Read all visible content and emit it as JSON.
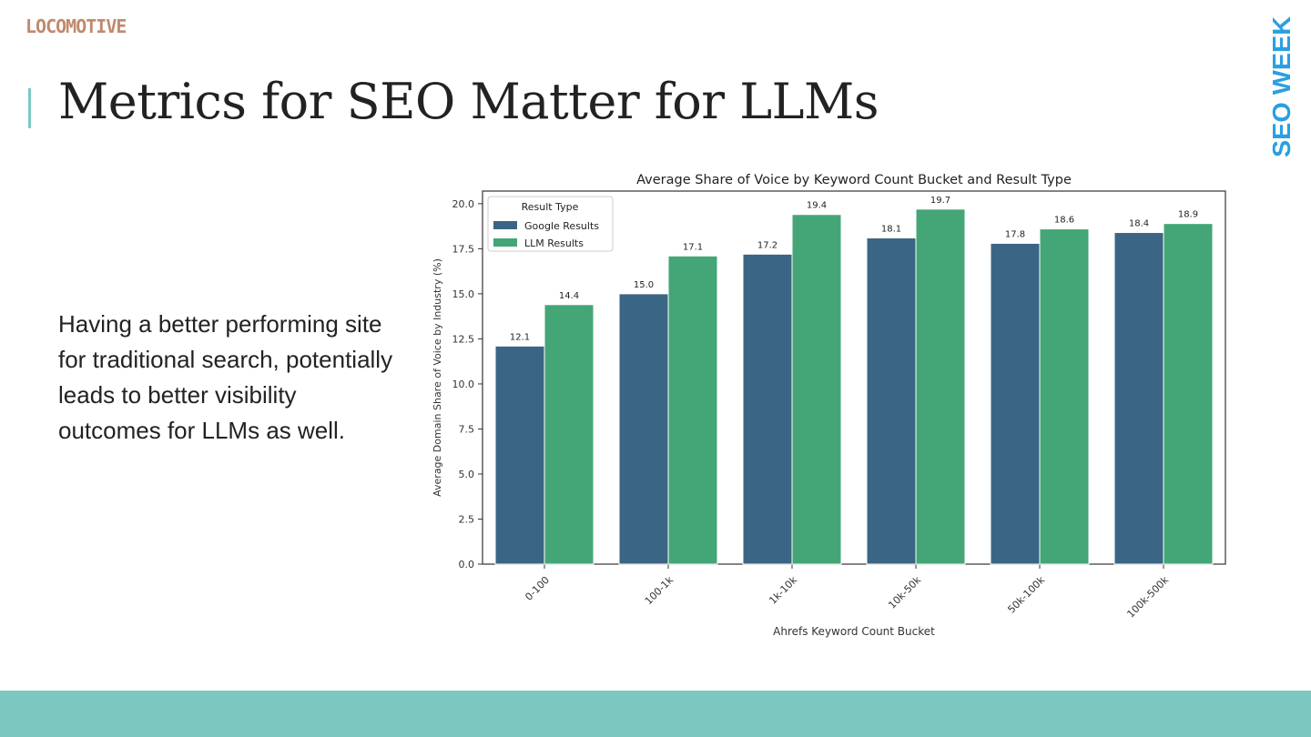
{
  "logo_text": "LOCOMOTIVE",
  "slide_title": "Metrics for SEO Matter for LLMs",
  "badge_text": "SEO WEEK",
  "body_text": "Having a better performing site for traditional search, potentially leads to better visibility outcomes for LLMs as well.",
  "colors": {
    "accent": "#7cc8c1",
    "google_bar": "#3b6584",
    "llm_bar": "#44a677",
    "badge": "#2b9fe0",
    "logo": "#c08a6e"
  },
  "chart_data": {
    "type": "bar",
    "title": "Average Share of Voice by Keyword Count Bucket and Result Type",
    "xlabel": "Ahrefs Keyword Count Bucket",
    "ylabel": "Average Domain Share of Voice by Industry (%)",
    "categories": [
      "0-100",
      "100-1k",
      "1k-10k",
      "10k-50k",
      "50k-100k",
      "100k-500k"
    ],
    "series": [
      {
        "name": "Google Results",
        "values": [
          12.1,
          15.0,
          17.2,
          18.1,
          17.8,
          18.4
        ],
        "labels": [
          "12.1",
          "15.0",
          "17.2",
          "18.1",
          "17.8",
          "18.4"
        ]
      },
      {
        "name": "LLM Results",
        "values": [
          14.4,
          17.1,
          19.4,
          19.7,
          18.6,
          18.9
        ],
        "labels": [
          "14.4",
          "17.1",
          "19.4",
          "19.7",
          "18.6",
          "18.9"
        ]
      }
    ],
    "ylim": [
      0,
      20.7
    ],
    "yticks": [
      "0.0",
      "2.5",
      "5.0",
      "7.5",
      "10.0",
      "12.5",
      "15.0",
      "17.5",
      "20.0"
    ],
    "legend_title": "Result Type",
    "legend_position": "top-left",
    "grid": false
  }
}
